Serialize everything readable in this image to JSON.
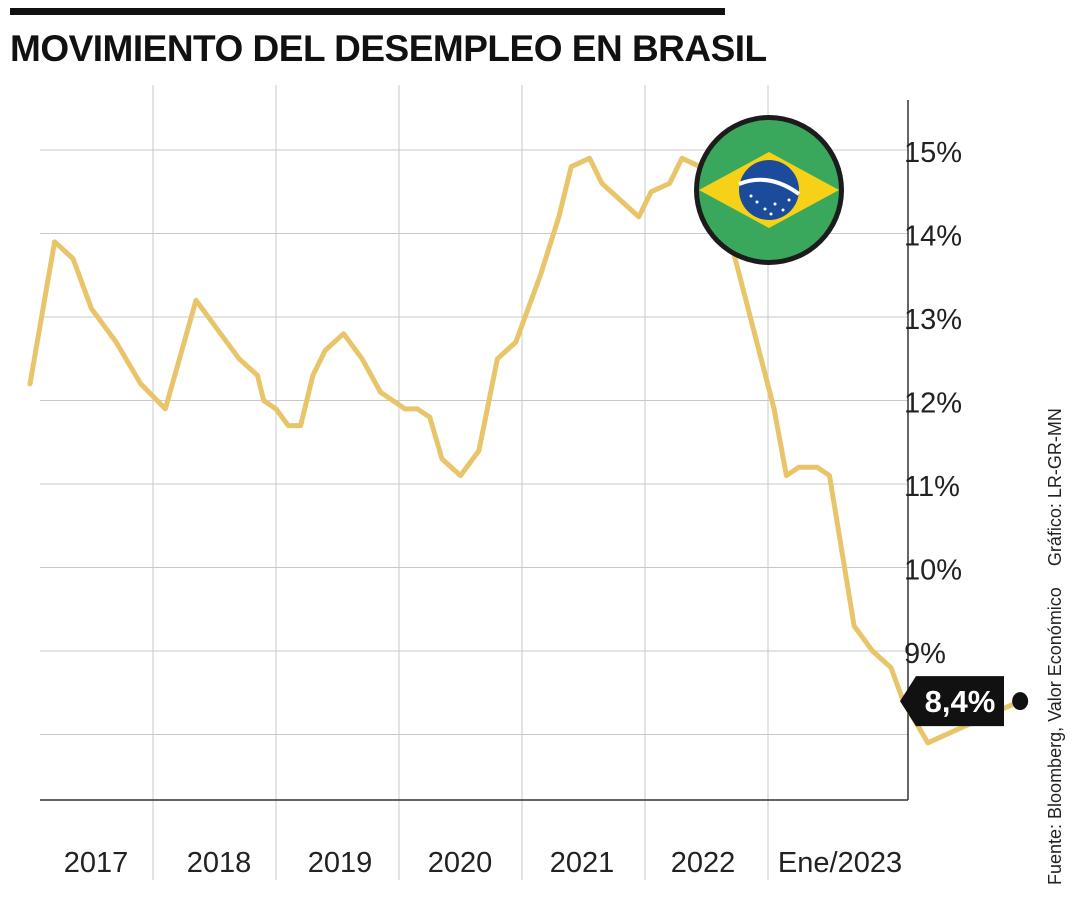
{
  "title": "MOVIMIENTO DEL DESEMPLEO EN BRASIL",
  "source": "Fuente: Bloomberg, Valor Económico",
  "credit": "Gráfico: LR-GR-MN",
  "colors": {
    "line": "#e8c56a",
    "grid": "#c8c8c8",
    "flag_green": "#3aa85c",
    "flag_yellow": "#f7d117",
    "flag_blue": "#1d4b9c"
  },
  "flag_icon": "brazil-flag",
  "chart_data": {
    "type": "line",
    "title": "MOVIMIENTO DEL DESEMPLEO EN BRASIL",
    "xlabel": "",
    "ylabel": "",
    "y_unit": "%",
    "ylim": [
      7.2,
      15.6
    ],
    "y_ticks": [
      9,
      10,
      11,
      12,
      13,
      14,
      15
    ],
    "y_tick_labels": [
      "9%",
      "10%",
      "11%",
      "12%",
      "13%",
      "14%",
      "15%"
    ],
    "x_labels": [
      "2017",
      "2018",
      "2019",
      "2020",
      "2021",
      "2022",
      "Ene/2023"
    ],
    "grid": true,
    "x_start_year": 2016.9,
    "series": [
      {
        "values": [
          [
            2016.9,
            12.2
          ],
          [
            2017.1,
            13.9
          ],
          [
            2017.25,
            13.7
          ],
          [
            2017.4,
            13.1
          ],
          [
            2017.6,
            12.7
          ],
          [
            2017.8,
            12.2
          ],
          [
            2018.0,
            11.9
          ],
          [
            2018.25,
            13.2
          ],
          [
            2018.45,
            12.8
          ],
          [
            2018.6,
            12.5
          ],
          [
            2018.75,
            12.3
          ],
          [
            2018.8,
            12.0
          ],
          [
            2018.9,
            11.9
          ],
          [
            2019.0,
            11.7
          ],
          [
            2019.1,
            11.7
          ],
          [
            2019.2,
            12.3
          ],
          [
            2019.3,
            12.6
          ],
          [
            2019.45,
            12.8
          ],
          [
            2019.6,
            12.5
          ],
          [
            2019.75,
            12.1
          ],
          [
            2019.95,
            11.9
          ],
          [
            2020.05,
            11.9
          ],
          [
            2020.15,
            11.8
          ],
          [
            2020.25,
            11.3
          ],
          [
            2020.4,
            11.1
          ],
          [
            2020.55,
            11.4
          ],
          [
            2020.7,
            12.5
          ],
          [
            2020.85,
            12.7
          ],
          [
            2021.05,
            13.5
          ],
          [
            2021.2,
            14.2
          ],
          [
            2021.3,
            14.8
          ],
          [
            2021.45,
            14.9
          ],
          [
            2021.55,
            14.6
          ],
          [
            2021.7,
            14.4
          ],
          [
            2021.85,
            14.2
          ],
          [
            2021.95,
            14.5
          ],
          [
            2022.1,
            14.6
          ],
          [
            2022.2,
            14.9
          ],
          [
            2022.35,
            14.8
          ],
          [
            2022.45,
            14.7
          ],
          [
            2022.65,
            13.6
          ],
          [
            2022.95,
            11.9
          ],
          [
            2023.05,
            11.1
          ],
          [
            2023.15,
            11.2
          ],
          [
            2023.3,
            11.2
          ],
          [
            2023.4,
            11.1
          ],
          [
            2023.6,
            9.3
          ],
          [
            2023.75,
            9.0
          ],
          [
            2023.9,
            8.8
          ],
          [
            2024.0,
            8.4
          ],
          [
            2024.2,
            7.9
          ],
          [
            2024.95,
            8.4
          ]
        ]
      }
    ],
    "last_value_label": "8,4%"
  }
}
